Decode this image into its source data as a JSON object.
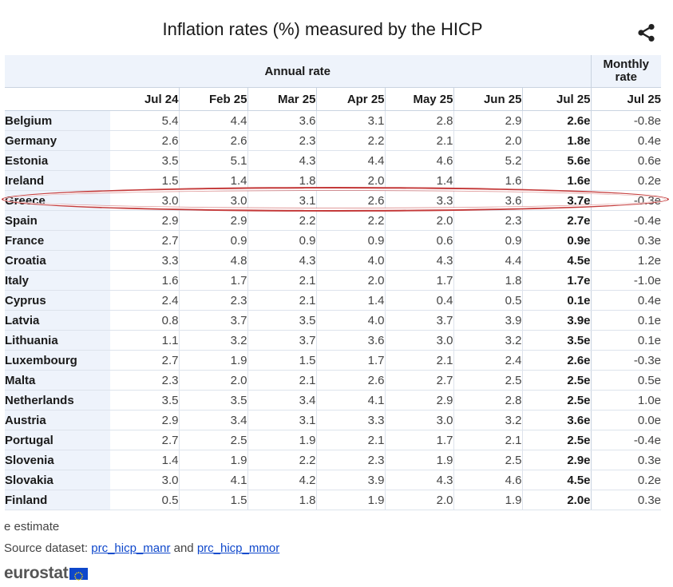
{
  "chart_data": {
    "type": "table",
    "title": "Inflation rates (%) measured by the HICP",
    "groups": [
      {
        "label": "Annual rate",
        "span": 7
      },
      {
        "label_line1": "Monthly",
        "label_line2": "rate",
        "span": 1
      }
    ],
    "columns": [
      "Jul 24",
      "Feb 25",
      "Mar 25",
      "Apr 25",
      "May 25",
      "Jun 25",
      "Jul 25",
      "Jul 25"
    ],
    "rows": [
      {
        "country": "Belgium",
        "values": [
          "5.4",
          "4.4",
          "3.6",
          "3.1",
          "2.8",
          "2.9",
          "2.6e",
          "-0.8e"
        ]
      },
      {
        "country": "Germany",
        "values": [
          "2.6",
          "2.6",
          "2.3",
          "2.2",
          "2.1",
          "2.0",
          "1.8e",
          "0.4e"
        ]
      },
      {
        "country": "Estonia",
        "values": [
          "3.5",
          "5.1",
          "4.3",
          "4.4",
          "4.6",
          "5.2",
          "5.6e",
          "0.6e"
        ]
      },
      {
        "country": "Ireland",
        "values": [
          "1.5",
          "1.4",
          "1.8",
          "2.0",
          "1.4",
          "1.6",
          "1.6e",
          "0.2e"
        ]
      },
      {
        "country": "Greece",
        "values": [
          "3.0",
          "3.0",
          "3.1",
          "2.6",
          "3.3",
          "3.6",
          "3.7e",
          "-0.3e"
        ],
        "highlighted": true
      },
      {
        "country": "Spain",
        "values": [
          "2.9",
          "2.9",
          "2.2",
          "2.2",
          "2.0",
          "2.3",
          "2.7e",
          "-0.4e"
        ]
      },
      {
        "country": "France",
        "values": [
          "2.7",
          "0.9",
          "0.9",
          "0.9",
          "0.6",
          "0.9",
          "0.9e",
          "0.3e"
        ]
      },
      {
        "country": "Croatia",
        "values": [
          "3.3",
          "4.8",
          "4.3",
          "4.0",
          "4.3",
          "4.4",
          "4.5e",
          "1.2e"
        ]
      },
      {
        "country": "Italy",
        "values": [
          "1.6",
          "1.7",
          "2.1",
          "2.0",
          "1.7",
          "1.8",
          "1.7e",
          "-1.0e"
        ]
      },
      {
        "country": "Cyprus",
        "values": [
          "2.4",
          "2.3",
          "2.1",
          "1.4",
          "0.4",
          "0.5",
          "0.1e",
          "0.4e"
        ]
      },
      {
        "country": "Latvia",
        "values": [
          "0.8",
          "3.7",
          "3.5",
          "4.0",
          "3.7",
          "3.9",
          "3.9e",
          "0.1e"
        ]
      },
      {
        "country": "Lithuania",
        "values": [
          "1.1",
          "3.2",
          "3.7",
          "3.6",
          "3.0",
          "3.2",
          "3.5e",
          "0.1e"
        ]
      },
      {
        "country": "Luxembourg",
        "values": [
          "2.7",
          "1.9",
          "1.5",
          "1.7",
          "2.1",
          "2.4",
          "2.6e",
          "-0.3e"
        ]
      },
      {
        "country": "Malta",
        "values": [
          "2.3",
          "2.0",
          "2.1",
          "2.6",
          "2.7",
          "2.5",
          "2.5e",
          "0.5e"
        ]
      },
      {
        "country": "Netherlands",
        "values": [
          "3.5",
          "3.5",
          "3.4",
          "4.1",
          "2.9",
          "2.8",
          "2.5e",
          "1.0e"
        ]
      },
      {
        "country": "Austria",
        "values": [
          "2.9",
          "3.4",
          "3.1",
          "3.3",
          "3.0",
          "3.2",
          "3.6e",
          "0.0e"
        ]
      },
      {
        "country": "Portugal",
        "values": [
          "2.7",
          "2.5",
          "1.9",
          "2.1",
          "1.7",
          "2.1",
          "2.5e",
          "-0.4e"
        ]
      },
      {
        "country": "Slovenia",
        "values": [
          "1.4",
          "1.9",
          "2.2",
          "2.3",
          "1.9",
          "2.5",
          "2.9e",
          "0.3e"
        ]
      },
      {
        "country": "Slovakia",
        "values": [
          "3.0",
          "4.1",
          "4.2",
          "3.9",
          "4.3",
          "4.6",
          "4.5e",
          "0.2e"
        ]
      },
      {
        "country": "Finland",
        "values": [
          "0.5",
          "1.5",
          "1.8",
          "1.9",
          "2.0",
          "1.9",
          "2.0e",
          "0.3e"
        ]
      }
    ],
    "highlight_color": "#c43a3a",
    "header_bg_color": "#eef3fb"
  },
  "footer": {
    "note": "e estimate",
    "source_prefix": "Source dataset: ",
    "source_link1": "prc_hicp_manr",
    "source_and": " and ",
    "source_link2": "prc_hicp_mmor",
    "link_color": "#0e47cb"
  },
  "logo": {
    "text": "eurostat",
    "flag_color": "#0e47cb"
  },
  "icons": {
    "share": "share-icon"
  }
}
